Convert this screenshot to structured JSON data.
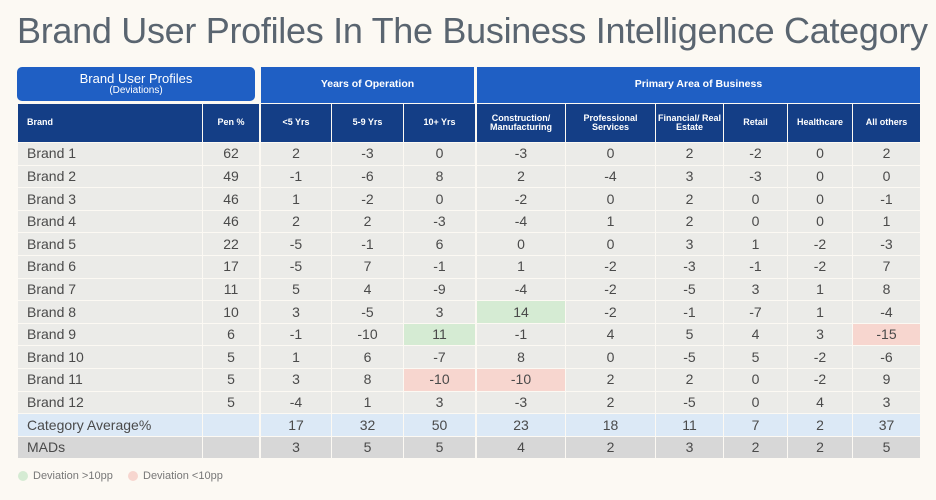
{
  "title": "Brand User Profiles In The Business Intelligence Category",
  "header": {
    "group_label": "Brand User Profiles",
    "group_sublabel": "(Deviations)",
    "years_group": "Years of Operation",
    "area_group": "Primary Area of Business",
    "columns": [
      "Brand",
      "Pen %",
      "<5 Yrs",
      "5-9 Yrs",
      "10+ Yrs",
      "Construction/ Manufacturing",
      "Professional Services",
      "Financial/ Real Estate",
      "Retail",
      "Healthcare",
      "All others"
    ]
  },
  "table": {
    "rows": [
      {
        "label": "Brand 1",
        "values": [
          62,
          2,
          -3,
          0,
          -3,
          0,
          2,
          -2,
          0,
          2
        ]
      },
      {
        "label": "Brand 2",
        "values": [
          49,
          -1,
          -6,
          8,
          2,
          -4,
          3,
          -3,
          0,
          0
        ]
      },
      {
        "label": "Brand 3",
        "values": [
          46,
          1,
          -2,
          0,
          -2,
          0,
          2,
          0,
          0,
          -1
        ]
      },
      {
        "label": "Brand 4",
        "values": [
          46,
          2,
          2,
          -3,
          -4,
          1,
          2,
          0,
          0,
          1
        ]
      },
      {
        "label": "Brand 5",
        "values": [
          22,
          -5,
          -1,
          6,
          0,
          0,
          3,
          1,
          -2,
          -3
        ]
      },
      {
        "label": "Brand 6",
        "values": [
          17,
          -5,
          7,
          -1,
          1,
          -2,
          -3,
          -1,
          -2,
          7
        ]
      },
      {
        "label": "Brand 7",
        "values": [
          11,
          5,
          4,
          -9,
          -4,
          -2,
          -5,
          3,
          1,
          8
        ]
      },
      {
        "label": "Brand 8",
        "values": [
          10,
          3,
          -5,
          3,
          14,
          -2,
          -1,
          -7,
          1,
          -4
        ]
      },
      {
        "label": "Brand 9",
        "values": [
          6,
          -1,
          -10,
          11,
          -1,
          4,
          5,
          4,
          3,
          -15
        ]
      },
      {
        "label": "Brand 10",
        "values": [
          5,
          1,
          6,
          -7,
          8,
          0,
          -5,
          5,
          -2,
          -6
        ]
      },
      {
        "label": "Brand 11",
        "values": [
          5,
          3,
          8,
          -10,
          -10,
          2,
          2,
          0,
          -2,
          9
        ]
      },
      {
        "label": "Brand 12",
        "values": [
          5,
          -4,
          1,
          3,
          -3,
          2,
          -5,
          0,
          4,
          3
        ]
      }
    ],
    "summary_rows": [
      {
        "label": "Category Average%",
        "values": [
          17,
          32,
          50,
          23,
          18,
          11,
          7,
          2,
          37
        ]
      },
      {
        "label": "MADs",
        "values": [
          3,
          5,
          5,
          4,
          2,
          3,
          2,
          2,
          5
        ]
      }
    ]
  },
  "legend": [
    "Deviation >10pp",
    "Deviation <10pp"
  ]
}
